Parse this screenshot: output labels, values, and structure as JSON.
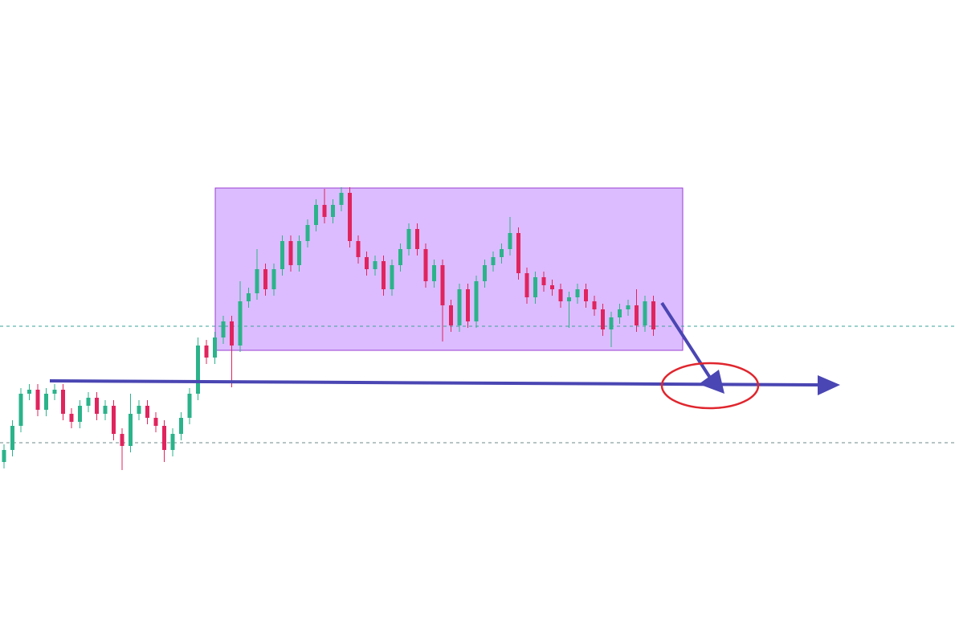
{
  "chart_data": {
    "type": "candlestick",
    "open": [
      225,
      240,
      270,
      310,
      315,
      290,
      310,
      315,
      285,
      275,
      295,
      305,
      285,
      295,
      260,
      245,
      285,
      295,
      280,
      270,
      240,
      260,
      280,
      310,
      370,
      355,
      380,
      400,
      370,
      425,
      435,
      465,
      440,
      465,
      500,
      470,
      500,
      520,
      545,
      530,
      545,
      560,
      500,
      480,
      465,
      475,
      440,
      470,
      490,
      515,
      490,
      450,
      470,
      420,
      395,
      440,
      400,
      450,
      470,
      480,
      490,
      510,
      460,
      430,
      455,
      445,
      440,
      425,
      430,
      440,
      425,
      415,
      390,
      405,
      415,
      420,
      395,
      425
    ],
    "high": [
      247,
      277,
      317,
      322,
      322,
      317,
      322,
      322,
      292,
      302,
      312,
      312,
      302,
      302,
      267,
      310,
      302,
      302,
      287,
      277,
      267,
      287,
      317,
      380,
      377,
      387,
      407,
      407,
      450,
      442,
      490,
      472,
      472,
      507,
      507,
      507,
      527,
      552,
      565,
      552,
      567,
      567,
      507,
      487,
      482,
      482,
      477,
      497,
      522,
      522,
      497,
      477,
      477,
      427,
      447,
      447,
      457,
      477,
      487,
      497,
      530,
      517,
      467,
      462,
      462,
      452,
      447,
      437,
      447,
      447,
      432,
      422,
      412,
      422,
      427,
      440,
      432,
      432
    ],
    "low": [
      217,
      232,
      262,
      302,
      282,
      282,
      302,
      277,
      267,
      267,
      287,
      277,
      277,
      252,
      215,
      237,
      277,
      272,
      262,
      225,
      232,
      252,
      272,
      302,
      347,
      347,
      372,
      318,
      362,
      417,
      427,
      432,
      432,
      457,
      462,
      462,
      492,
      512,
      522,
      522,
      537,
      492,
      472,
      457,
      457,
      432,
      432,
      462,
      482,
      482,
      442,
      442,
      375,
      387,
      387,
      392,
      392,
      442,
      462,
      472,
      482,
      452,
      422,
      422,
      437,
      432,
      417,
      392,
      422,
      417,
      407,
      382,
      368,
      397,
      407,
      387,
      387,
      382
    ],
    "close": [
      240,
      270,
      310,
      315,
      290,
      310,
      315,
      285,
      275,
      295,
      305,
      285,
      295,
      260,
      245,
      285,
      295,
      280,
      270,
      240,
      260,
      280,
      310,
      370,
      355,
      380,
      400,
      370,
      425,
      435,
      465,
      440,
      465,
      500,
      470,
      500,
      520,
      545,
      530,
      545,
      560,
      500,
      480,
      465,
      475,
      440,
      470,
      490,
      515,
      490,
      450,
      470,
      420,
      395,
      440,
      400,
      450,
      470,
      480,
      490,
      510,
      460,
      430,
      455,
      445,
      440,
      425,
      430,
      440,
      425,
      415,
      390,
      405,
      415,
      420,
      395,
      425,
      390
    ],
    "up_color": "#2bb38a",
    "down_color": "#e0245e",
    "ylim": [
      0,
      800
    ]
  }
}
